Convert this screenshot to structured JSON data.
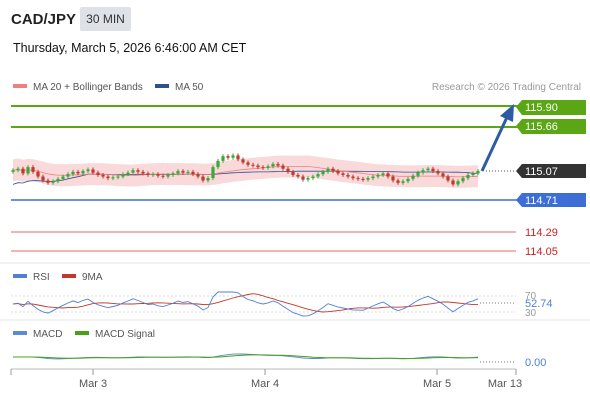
{
  "header": {
    "symbol": "CAD/JPY",
    "interval": "30 MIN",
    "datetime": "Thursday, March 5, 2026 6:46:00 AM CET"
  },
  "colors": {
    "resistance": "#5aa614",
    "support": "#3d6ed6",
    "target_low": "#e26a6a",
    "price_box": "#333333",
    "bb_fill": "#f9d9d9",
    "ma20": "#f08080",
    "ma50": "#2f4f8f",
    "arrow": "#2e5ca3",
    "candle_up": "#39a839",
    "candle_down": "#c0392b",
    "rsi": "#4f7fd6",
    "rsi_ma": "#c0392b",
    "macd": "#5b8ad8",
    "macd_signal": "#4aa01a"
  },
  "main_legend": {
    "ma20_label": "MA 20 + Bollinger Bands",
    "ma50_label": "MA 50",
    "credit": "Research © 2026 Trading Central"
  },
  "levels": {
    "r2": "115.90",
    "r1": "115.66",
    "current": "115.07",
    "s1": "114.71",
    "s2": "114.29",
    "s3": "114.05"
  },
  "rsi_panel": {
    "rsi_label": "RSI",
    "ma_label": "9MA",
    "level_70": "70",
    "level_30": "30",
    "value": "52.74"
  },
  "macd_panel": {
    "macd_label": "MACD",
    "signal_label": "MACD Signal",
    "value": "0.00"
  },
  "x_axis": {
    "ticks": [
      "Mar 3",
      "Mar 4",
      "Mar 5",
      "Mar 13"
    ]
  },
  "chart_data": {
    "type": "candlestick",
    "y_range": [
      113.93,
      116.0
    ],
    "closes": [
      115.08,
      115.1,
      115.04,
      115.12,
      115.06,
      115.0,
      114.95,
      114.92,
      114.94,
      114.97,
      115.0,
      115.03,
      115.06,
      115.04,
      115.07,
      115.09,
      115.05,
      115.02,
      115.0,
      114.98,
      114.99,
      115.0,
      115.03,
      115.05,
      115.08,
      115.06,
      115.04,
      115.02,
      115.03,
      115.01,
      115.0,
      115.02,
      115.04,
      115.07,
      115.05,
      115.06,
      115.03,
      115.0,
      114.95,
      114.98,
      115.12,
      115.2,
      115.26,
      115.24,
      115.27,
      115.22,
      115.18,
      115.15,
      115.14,
      115.12,
      115.11,
      115.13,
      115.16,
      115.14,
      115.1,
      115.06,
      115.02,
      115.0,
      114.96,
      114.98,
      115.0,
      115.03,
      115.06,
      115.1,
      115.07,
      115.04,
      115.02,
      115.0,
      114.98,
      114.97,
      114.96,
      114.98,
      115.0,
      115.02,
      115.04,
      115.0,
      114.95,
      114.92,
      114.94,
      114.97,
      115.01,
      115.05,
      115.08,
      115.1,
      115.07,
      115.04,
      115.0,
      114.95,
      114.9,
      114.94,
      114.98,
      115.02,
      115.04,
      115.07
    ],
    "levels": [
      115.9,
      115.66,
      115.07,
      114.71,
      114.29,
      114.05
    ],
    "rsi": {
      "value": 52.74,
      "levels": [
        70,
        30
      ]
    },
    "macd": {
      "value": 0.0
    },
    "x_ticks": [
      "Mar 3",
      "Mar 4",
      "Mar 5",
      "Mar 13"
    ]
  }
}
